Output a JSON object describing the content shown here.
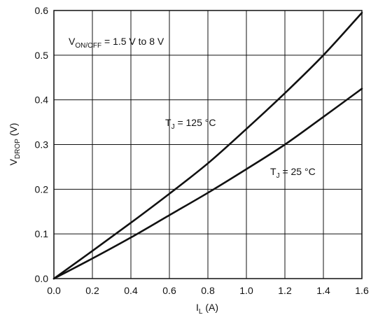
{
  "chart_data": {
    "type": "line",
    "xlim": [
      0,
      1.6
    ],
    "ylim": [
      0,
      0.6
    ],
    "x_ticks": [
      "0.0",
      "0.2",
      "0.4",
      "0.6",
      "0.8",
      "1.0",
      "1.2",
      "1.4",
      "1.6"
    ],
    "y_ticks": [
      "0.0",
      "0.1",
      "0.2",
      "0.3",
      "0.4",
      "0.5",
      "0.6"
    ],
    "grid": true,
    "xlabel": {
      "main": "I",
      "sub": "L",
      "rest": " (A)"
    },
    "ylabel": {
      "main": "V",
      "sub": "DROP",
      "rest": "  (V)"
    },
    "annotations": {
      "von_off": {
        "main": "V",
        "sub": "ON/OFF",
        "rest": " = 1.5 V to 8 V"
      },
      "tj_125": {
        "main": "T",
        "sub": "J",
        "rest": " = 125 °C"
      },
      "tj_25": {
        "main": "T",
        "sub": "J",
        "rest": " = 25 °C"
      }
    },
    "series": [
      {
        "x": [
          0,
          0.2,
          0.4,
          0.6,
          0.8,
          1.0,
          1.2,
          1.4,
          1.6
        ],
        "y": [
          0,
          0.062,
          0.125,
          0.19,
          0.258,
          0.335,
          0.415,
          0.5,
          0.595
        ]
      },
      {
        "x": [
          0,
          0.2,
          0.4,
          0.6,
          0.8,
          1.0,
          1.2,
          1.4,
          1.6
        ],
        "y": [
          0,
          0.045,
          0.092,
          0.142,
          0.192,
          0.245,
          0.3,
          0.362,
          0.425
        ]
      }
    ]
  }
}
